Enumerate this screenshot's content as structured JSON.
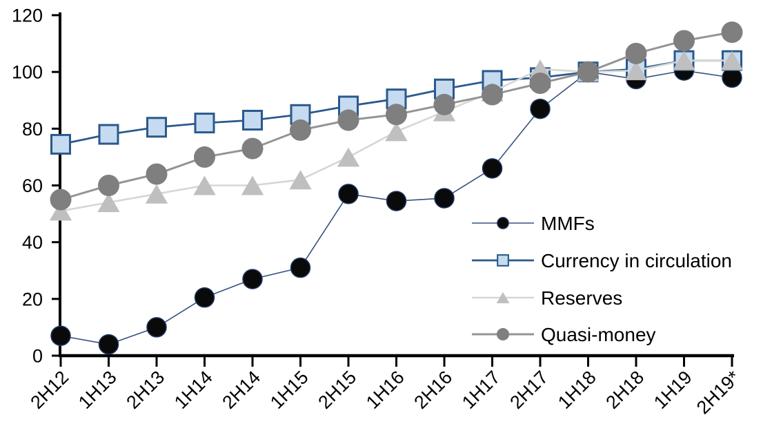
{
  "chart_data": {
    "type": "line",
    "title": "",
    "xlabel": "",
    "ylabel": "",
    "categories": [
      "2H12",
      "1H13",
      "2H13",
      "1H14",
      "2H14",
      "1H15",
      "2H15",
      "1H16",
      "2H16",
      "1H17",
      "2H17",
      "1H18",
      "2H18",
      "1H19",
      "2H19*"
    ],
    "series": [
      {
        "name": "MMFs",
        "marker": "circle",
        "marker_size": 28,
        "marker_color": "#0a0a0a",
        "marker_edge": "#1f3864",
        "marker_edge_width": 1.5,
        "line_color": "#35517e",
        "line_width": 1.6,
        "values": [
          7,
          4,
          10,
          20.5,
          27,
          31,
          57,
          54.5,
          55.5,
          66,
          87,
          100,
          97.5,
          100.5,
          98
        ]
      },
      {
        "name": "Currency in circulation",
        "marker": "square",
        "marker_size": 27,
        "marker_color": "#c6dbf0",
        "marker_edge": "#2a598c",
        "marker_edge_width": 3,
        "line_color": "#2a598c",
        "line_width": 2.8,
        "values": [
          74.5,
          78,
          80.5,
          82,
          83,
          85,
          88,
          90.5,
          94,
          97,
          98,
          100,
          101,
          104,
          104
        ]
      },
      {
        "name": "Reserves",
        "marker": "triangle",
        "marker_size": 30,
        "marker_color": "#bfbfbf",
        "marker_edge": "none",
        "marker_edge_width": 0,
        "line_color": "#d6d6d6",
        "line_width": 2.6,
        "values": [
          51,
          54,
          57,
          60,
          60,
          62,
          70,
          79,
          86,
          93,
          101,
          100,
          100.5,
          104,
          104
        ]
      },
      {
        "name": "Quasi-money",
        "marker": "circle",
        "marker_size": 31,
        "marker_color": "#7f7f7f",
        "marker_edge": "none",
        "marker_edge_width": 0,
        "line_color": "#949494",
        "line_width": 3,
        "values": [
          55,
          60,
          64,
          70,
          73,
          79.5,
          83,
          85,
          88.5,
          92,
          96,
          100,
          106.5,
          111,
          114
        ]
      }
    ],
    "ylim": [
      0,
      120
    ],
    "yticks": [
      0,
      20,
      40,
      60,
      80,
      100,
      120
    ],
    "grid": false,
    "legend_position": "inside-right",
    "axis_color": "#000000",
    "tick_label_color": "#000000",
    "legend_text_color": "#000000"
  }
}
